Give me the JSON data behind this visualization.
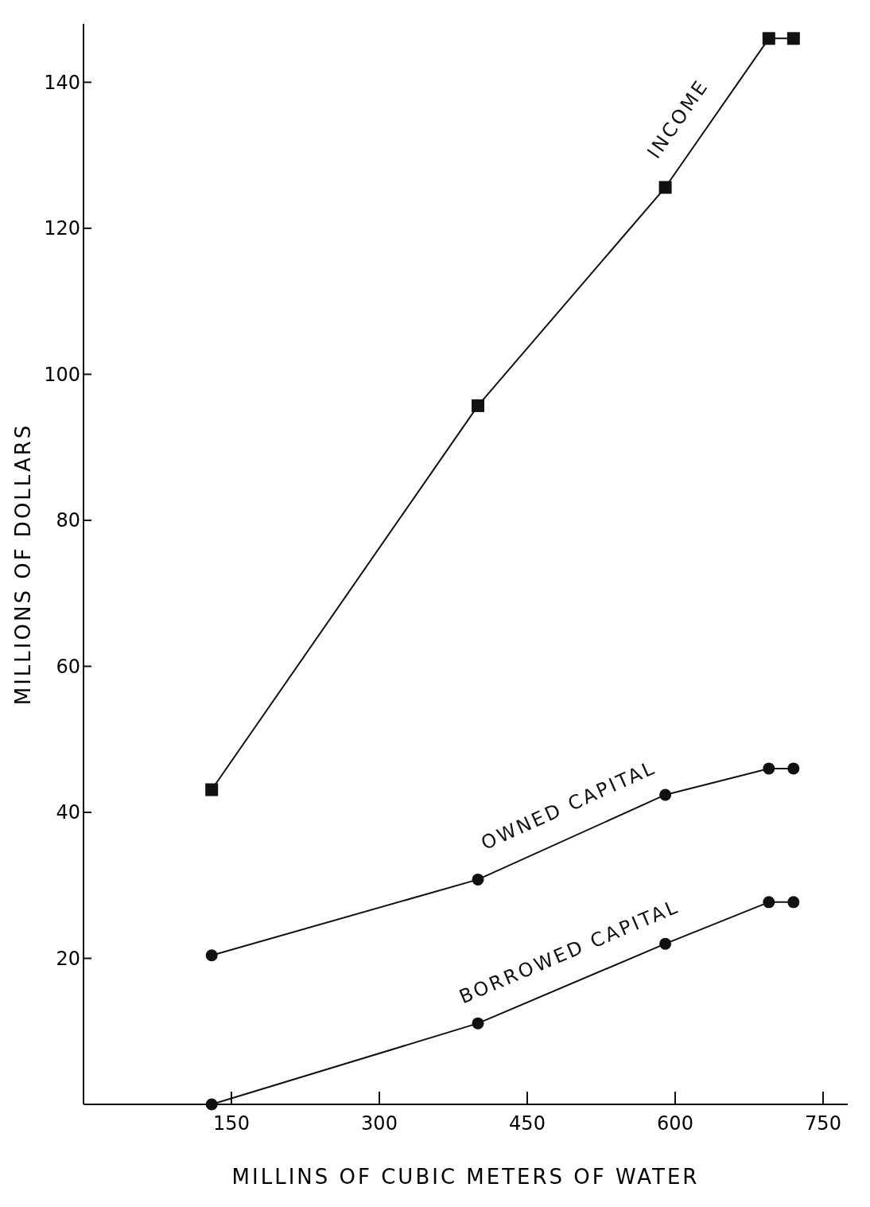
{
  "chart_data": {
    "type": "line",
    "xlabel": "MILLINS  OF  CUBIC  METERS  OF  WATER",
    "ylabel": "MILLIONS  OF  DOLLARS",
    "x": [
      130,
      400,
      590,
      695,
      720
    ],
    "series": [
      {
        "name": "INCOME",
        "color": "#111111",
        "marker": "square",
        "values": [
          43.1,
          95.7,
          125.6,
          146,
          146
        ]
      },
      {
        "name": "OWNED CAPITAL",
        "color": "#111111",
        "marker": "circle",
        "values": [
          20.4,
          30.8,
          42.4,
          46,
          46
        ]
      },
      {
        "name": "BORROWED CAPITAL",
        "color": "#111111",
        "marker": "circle",
        "values": [
          0,
          11.1,
          22,
          27.7,
          27.7
        ]
      }
    ],
    "xlim": [
      0,
      775
    ],
    "ylim": [
      0,
      148
    ],
    "xticks": [
      150,
      300,
      450,
      600,
      750
    ],
    "yticks": [
      20,
      40,
      60,
      80,
      100,
      120,
      140
    ],
    "grid": false,
    "line_style": "solid"
  }
}
